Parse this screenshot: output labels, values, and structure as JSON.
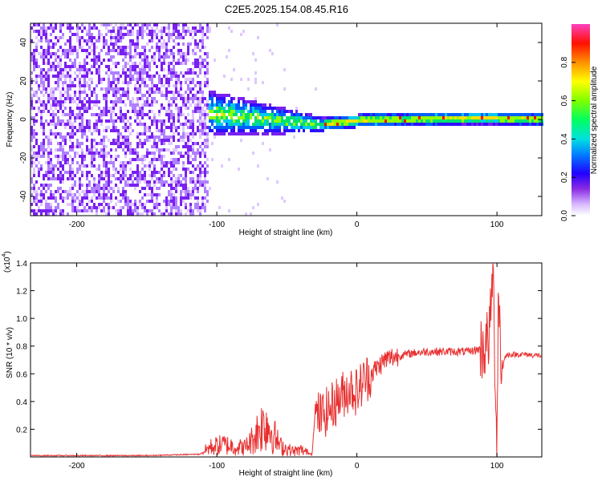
{
  "figure": {
    "title": "C2E5.2025.154.08.45.R16"
  },
  "chart_data": [
    {
      "type": "heatmap",
      "title": "C2E5.2025.154.08.45.R16",
      "xlabel": "Height of straight line (km)",
      "ylabel": "Frequency (Hz)",
      "xlim": [
        -233,
        132
      ],
      "ylim": [
        -50,
        50
      ],
      "xticks": [
        -200,
        -100,
        0,
        100
      ],
      "yticks": [
        -40,
        -20,
        0,
        20,
        40
      ],
      "colorbar": {
        "label": "Normalized spectral amplitude",
        "ticks": [
          0.0,
          0.2,
          0.4,
          0.6,
          0.8
        ],
        "range": [
          0,
          1
        ],
        "colormap": [
          "#ffffff",
          "#d0b0ff",
          "#8000ff",
          "#0000ff",
          "#00c0ff",
          "#00ff80",
          "#80ff00",
          "#ffff00",
          "#ff8000",
          "#ff0000",
          "#ff00ff"
        ]
      },
      "regions": [
        {
          "x_range": [
            -233,
            -107
          ],
          "description": "noise",
          "amplitude": 0.1
        },
        {
          "x_range": [
            -107,
            -25
          ],
          "center_hz": 2,
          "spread_hz": 8,
          "amplitude": 0.4
        },
        {
          "x_range": [
            -25,
            132
          ],
          "center_hz": 1,
          "spread_hz": 2,
          "amplitude": 0.8
        }
      ],
      "grid": false
    },
    {
      "type": "line",
      "title": "",
      "xlabel": "Height of straight line (km)",
      "ylabel": "SNR (10 * v/v)",
      "y_scale_label": "(x10",
      "y_scale_exp": "4",
      "y_scale_close": ")",
      "xlim": [
        -233,
        132
      ],
      "ylim": [
        0,
        1.4
      ],
      "xticks": [
        -200,
        -100,
        0,
        100
      ],
      "yticks": [
        0.2,
        0.4,
        0.6,
        0.8,
        1.0,
        1.2,
        1.4
      ],
      "color": "#e83030",
      "series": [
        {
          "x": [
            -233,
            -200,
            -150,
            -112,
            -105,
            -95,
            -90,
            -85,
            -80,
            -75,
            -70,
            -65,
            -60,
            -55,
            -50,
            -45,
            -40,
            -35,
            -32,
            -30,
            -25,
            -20,
            -15,
            -10,
            -5,
            0,
            5,
            10,
            15,
            20,
            25,
            30,
            40,
            50,
            60,
            70,
            80,
            88,
            92,
            95,
            97,
            99,
            100,
            101,
            103,
            106,
            110,
            120,
            132
          ],
          "values": [
            0.01,
            0.01,
            0.01,
            0.02,
            0.07,
            0.09,
            0.08,
            0.07,
            0.07,
            0.12,
            0.2,
            0.25,
            0.17,
            0.08,
            0.06,
            0.04,
            0.05,
            0.03,
            0.02,
            0.3,
            0.3,
            0.34,
            0.4,
            0.45,
            0.5,
            0.47,
            0.55,
            0.6,
            0.65,
            0.7,
            0.72,
            0.73,
            0.75,
            0.76,
            0.76,
            0.76,
            0.76,
            0.78,
            0.8,
            0.9,
            1.4,
            0.5,
            0.02,
            1.3,
            0.6,
            0.73,
            0.74,
            0.74,
            0.73
          ]
        }
      ],
      "grid": false
    }
  ]
}
